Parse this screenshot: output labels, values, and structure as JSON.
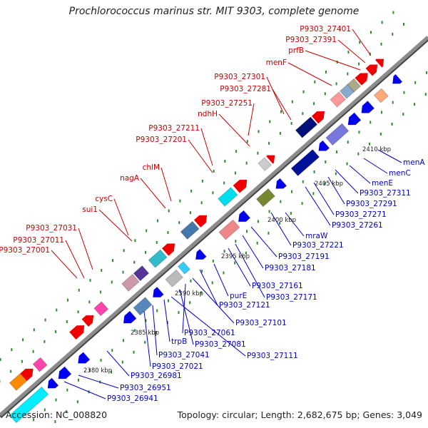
{
  "title": "Prochlorococcus marinus str. MIT 9303, complete genome",
  "footer": {
    "accession": "Accession: NC_008820",
    "summary": "Topology: circular; Length: 2,682,675 bp; Genes: 3,049"
  },
  "colors": {
    "backbone": "#8c8c8c",
    "forward_label": "#cc0000",
    "reverse_label": "#0000cc",
    "forward_gene": "#ee0000",
    "reverse_gene": "#0000ee",
    "tick": "#2e8b2e"
  },
  "scale_labels": [
    "2380 kbp",
    "2385 kbp",
    "2390 kbp",
    "2395 kbp",
    "2400 kbp",
    "2405 kbp",
    "2410 kbp"
  ],
  "forward_labels": [
    "P9303_27401",
    "P9303_27391",
    "prfB",
    "menF",
    "P9303_27301",
    "P9303_27281",
    "P9303_27251",
    "ndhH",
    "P9303_27211",
    "P9303_27201",
    "chlM",
    "nagA",
    "cysC",
    "sui1",
    "P9303_27031",
    "P9303_27011",
    "P9303_27001"
  ],
  "reverse_labels": [
    "menA",
    "menC",
    "menE",
    "P9303_27311",
    "P9303_27291",
    "P9303_27271",
    "P9303_27261",
    "mraW",
    "P9303_27221",
    "P9303_27191",
    "P9303_27181",
    "P9303_27171",
    "P9303_27161",
    "purE",
    "P9303_27121",
    "P9303_27101",
    "P9303_27061",
    "P9303_27081",
    "P9303_27111",
    "trpB",
    "P9303_27041",
    "P9303_27021",
    "P9303_26981",
    "P9303_26951",
    "P9303_26941"
  ]
}
